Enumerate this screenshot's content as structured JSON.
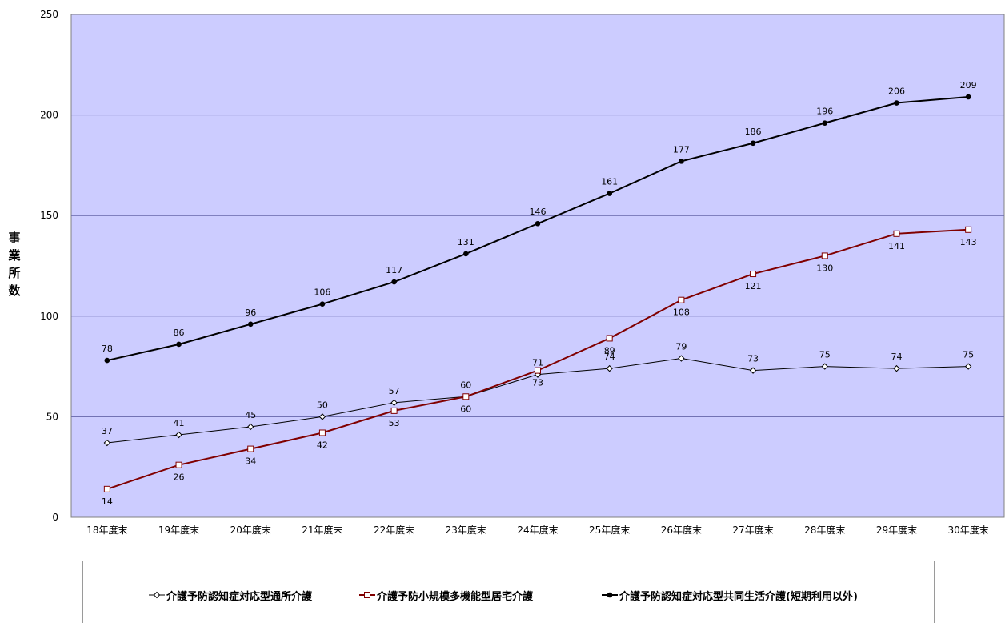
{
  "chart_data": {
    "type": "line",
    "categories": [
      "18年度末",
      "19年度末",
      "20年度末",
      "21年度末",
      "22年度末",
      "23年度末",
      "24年度末",
      "25年度末",
      "26年度末",
      "27年度末",
      "28年度末",
      "29年度末",
      "30年度末"
    ],
    "ylabel": "事業所数",
    "ylim": [
      0,
      250
    ],
    "yticks": [
      0,
      50,
      100,
      150,
      200,
      250
    ],
    "grid": true,
    "legend_position": "bottom",
    "plot_background": "#ccccff",
    "series": [
      {
        "name": "介護予防認知症対応型通所介護",
        "values": [
          37,
          41,
          45,
          50,
          57,
          60,
          71,
          74,
          79,
          73,
          75,
          74,
          75
        ],
        "color": "#000000",
        "marker": "diamond-open",
        "label_pos": "above"
      },
      {
        "name": "介護予防小規模多機能型居宅介護",
        "values": [
          14,
          26,
          34,
          42,
          53,
          60,
          73,
          89,
          108,
          121,
          130,
          141,
          143
        ],
        "color": "#800000",
        "marker": "square-open",
        "label_pos": "below"
      },
      {
        "name": "介護予防認知症対応型共同生活介護(短期利用以外)",
        "values": [
          78,
          86,
          96,
          106,
          117,
          131,
          146,
          161,
          177,
          186,
          196,
          206,
          209
        ],
        "color": "#000000",
        "marker": "circle-filled",
        "label_pos": "above"
      }
    ]
  }
}
